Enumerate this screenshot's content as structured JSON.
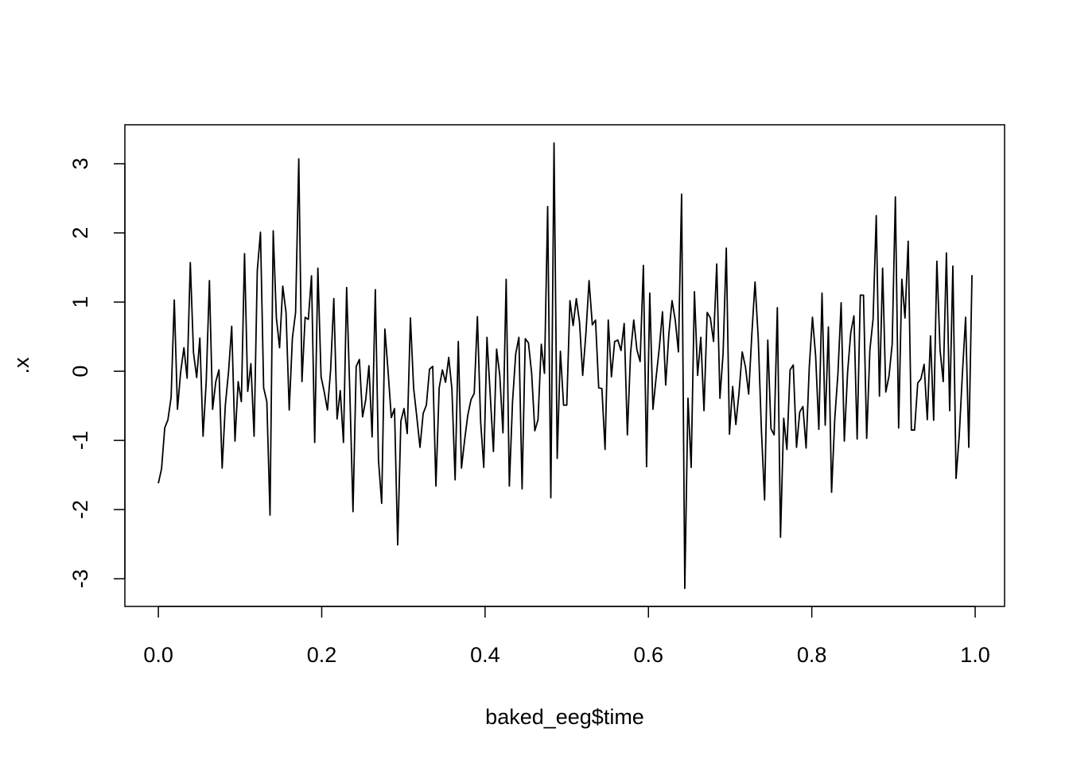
{
  "chart_data": {
    "type": "line",
    "x_label": "baked_eeg$time",
    "y_label": ".x",
    "x": [
      0,
      0.0039,
      0.0078,
      0.0117,
      0.0156,
      0.0195,
      0.0234,
      0.0273,
      0.0313,
      0.0352,
      0.0391,
      0.043,
      0.0469,
      0.0508,
      0.0547,
      0.0586,
      0.0625,
      0.0664,
      0.0703,
      0.0742,
      0.0781,
      0.082,
      0.0859,
      0.0898,
      0.0938,
      0.0977,
      0.1016,
      0.1055,
      0.1094,
      0.1133,
      0.1172,
      0.1211,
      0.125,
      0.1289,
      0.1328,
      0.1367,
      0.1406,
      0.1445,
      0.1484,
      0.1523,
      0.1563,
      0.1602,
      0.1641,
      0.168,
      0.1719,
      0.1758,
      0.1797,
      0.1836,
      0.1875,
      0.1914,
      0.1953,
      0.1992,
      0.2031,
      0.207,
      0.2109,
      0.2148,
      0.2188,
      0.2227,
      0.2266,
      0.2305,
      0.2344,
      0.2383,
      0.2422,
      0.2461,
      0.25,
      0.2539,
      0.2578,
      0.2617,
      0.2656,
      0.2695,
      0.2734,
      0.2773,
      0.2813,
      0.2852,
      0.2891,
      0.293,
      0.2969,
      0.3008,
      0.3047,
      0.3086,
      0.3125,
      0.3164,
      0.3203,
      0.3242,
      0.3281,
      0.332,
      0.3359,
      0.3398,
      0.3438,
      0.3477,
      0.3516,
      0.3555,
      0.3594,
      0.3633,
      0.3672,
      0.3711,
      0.375,
      0.3789,
      0.3828,
      0.3867,
      0.3906,
      0.3945,
      0.3984,
      0.4023,
      0.4063,
      0.4102,
      0.4141,
      0.418,
      0.4219,
      0.4258,
      0.4297,
      0.4336,
      0.4375,
      0.4414,
      0.4453,
      0.4492,
      0.4531,
      0.457,
      0.4609,
      0.4648,
      0.4688,
      0.4727,
      0.4766,
      0.4805,
      0.4844,
      0.4883,
      0.4922,
      0.4961,
      0.5,
      0.5039,
      0.5078,
      0.5117,
      0.5156,
      0.5195,
      0.5234,
      0.5273,
      0.5313,
      0.5352,
      0.5391,
      0.543,
      0.5469,
      0.5508,
      0.5547,
      0.5586,
      0.5625,
      0.5664,
      0.5703,
      0.5742,
      0.5781,
      0.582,
      0.5859,
      0.5898,
      0.5938,
      0.5977,
      0.6016,
      0.6055,
      0.6094,
      0.6133,
      0.6172,
      0.6211,
      0.625,
      0.6289,
      0.6328,
      0.6367,
      0.6406,
      0.6445,
      0.6484,
      0.6523,
      0.6563,
      0.6602,
      0.6641,
      0.668,
      0.6719,
      0.6758,
      0.6797,
      0.6836,
      0.6875,
      0.6914,
      0.6953,
      0.6992,
      0.7031,
      0.707,
      0.7109,
      0.7148,
      0.7188,
      0.7227,
      0.7266,
      0.7305,
      0.7344,
      0.7383,
      0.7422,
      0.7461,
      0.75,
      0.7539,
      0.7578,
      0.7617,
      0.7656,
      0.7695,
      0.7734,
      0.7773,
      0.7813,
      0.7852,
      0.7891,
      0.793,
      0.7969,
      0.8008,
      0.8047,
      0.8086,
      0.8125,
      0.8164,
      0.8203,
      0.8242,
      0.8281,
      0.832,
      0.8359,
      0.8398,
      0.8438,
      0.8477,
      0.8516,
      0.8555,
      0.8594,
      0.8633,
      0.8672,
      0.8711,
      0.875,
      0.8789,
      0.8828,
      0.8867,
      0.8906,
      0.8945,
      0.8984,
      0.9023,
      0.9063,
      0.9102,
      0.9141,
      0.918,
      0.9219,
      0.9258,
      0.9297,
      0.9336,
      0.9375,
      0.9414,
      0.9453,
      0.9492,
      0.9531,
      0.957,
      0.9609,
      0.9648,
      0.9688,
      0.9727,
      0.9766,
      0.9805,
      0.9844,
      0.9883,
      0.9922,
      0.9961
    ],
    "series": [
      {
        "color": "#000000",
        "values": [
          -1.62,
          -1.41,
          -0.82,
          -0.7,
          -0.38,
          1.03,
          -0.55,
          -0.01,
          0.34,
          -0.1,
          1.57,
          0.27,
          -0.09,
          0.48,
          -0.94,
          -0.15,
          1.31,
          -0.55,
          -0.15,
          0.02,
          -1.4,
          -0.49,
          -0.01,
          0.65,
          -1.01,
          -0.15,
          -0.44,
          1.7,
          -0.29,
          0.11,
          -0.94,
          1.45,
          2.01,
          -0.24,
          -0.44,
          -2.08,
          2.03,
          0.77,
          0.34,
          1.23,
          0.85,
          -0.56,
          0.48,
          0.85,
          3.07,
          -0.15,
          0.78,
          0.75,
          1.38,
          -1.03,
          1.49,
          -0.08,
          -0.3,
          -0.56,
          0.02,
          1.05,
          -0.69,
          -0.28,
          -1.03,
          1.21,
          -0.3,
          -2.03,
          0.07,
          0.17,
          -0.66,
          -0.41,
          0.08,
          -0.95,
          1.18,
          -1.29,
          -1.91,
          0.61,
          -0.01,
          -0.67,
          -0.54,
          -2.51,
          -0.72,
          -0.54,
          -0.9,
          0.77,
          -0.24,
          -0.66,
          -1.1,
          -0.61,
          -0.49,
          0.03,
          0.07,
          -1.66,
          -0.24,
          0.02,
          -0.16,
          0.2,
          -0.26,
          -1.57,
          0.43,
          -1.4,
          -0.99,
          -0.63,
          -0.41,
          -0.32,
          0.79,
          -0.72,
          -1.39,
          0.49,
          -0.34,
          -1.16,
          0.32,
          -0.06,
          -0.89,
          1.33,
          -1.66,
          -0.44,
          0.25,
          0.49,
          -1.7,
          0.47,
          0.41,
          -0.03,
          -0.86,
          -0.7,
          0.39,
          -0.03,
          2.38,
          -1.83,
          3.3,
          -1.26,
          0.29,
          -0.49,
          -0.49,
          1.02,
          0.66,
          1.05,
          0.71,
          -0.06,
          0.54,
          1.31,
          0.67,
          0.74,
          -0.24,
          -0.25,
          -1.13,
          0.74,
          -0.08,
          0.43,
          0.45,
          0.3,
          0.69,
          -0.92,
          0.26,
          0.74,
          0.31,
          0.14,
          1.53,
          -1.38,
          1.13,
          -0.55,
          -0.09,
          0.34,
          0.86,
          -0.2,
          0.54,
          1.02,
          0.74,
          0.28,
          2.56,
          -3.14,
          -0.39,
          -1.39,
          1.15,
          -0.06,
          0.49,
          -0.57,
          0.85,
          0.77,
          0.43,
          1.55,
          -0.39,
          0.26,
          1.78,
          -0.91,
          -0.22,
          -0.77,
          -0.31,
          0.28,
          0.06,
          -0.33,
          0.54,
          1.29,
          0.48,
          -0.85,
          -1.86,
          0.45,
          -0.83,
          -0.92,
          0.92,
          -2.4,
          -0.68,
          -1.13,
          0.02,
          0.09,
          -1.1,
          -0.59,
          -0.51,
          -1.11,
          0.06,
          0.78,
          0.22,
          -0.84,
          1.13,
          -0.78,
          0.64,
          -1.75,
          -0.69,
          -0.03,
          0.99,
          -1.01,
          -0.02,
          0.56,
          0.8,
          -0.98,
          1.1,
          1.1,
          -0.97,
          0.31,
          0.75,
          2.25,
          -0.36,
          1.49,
          -0.3,
          -0.07,
          0.39,
          2.52,
          -0.82,
          1.33,
          0.77,
          1.88,
          -0.85,
          -0.85,
          -0.17,
          -0.11,
          0.1,
          -0.7,
          0.51,
          -0.71,
          1.59,
          0.31,
          -0.15,
          1.71,
          -0.57,
          1.52,
          -1.55,
          -0.93,
          -0.03,
          0.78,
          -1.1,
          1.39
        ]
      }
    ],
    "xlim": [
      -0.041,
      1.036
    ],
    "ylim": [
      -3.4,
      3.563
    ],
    "xticks": [
      {
        "value": 0,
        "label": "0.0"
      },
      0.2,
      0.4,
      0.6,
      0.8,
      {
        "value": 1,
        "label": "1.0"
      }
    ],
    "yticks": [
      -3,
      -2,
      -1,
      0,
      1,
      2,
      3
    ]
  }
}
